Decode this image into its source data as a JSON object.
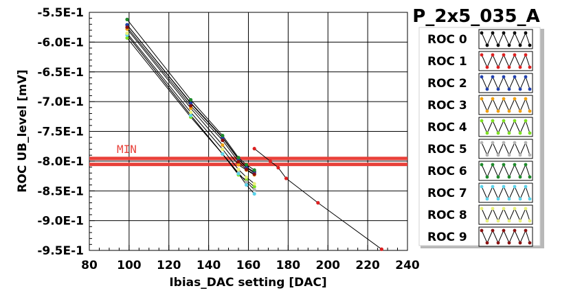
{
  "chart_data": {
    "type": "line",
    "title": "P_2x5_035_A",
    "xlabel": "Ibias_DAC setting [DAC]",
    "ylabel": "ROC UB_level [mV]",
    "xlim": [
      80,
      240
    ],
    "ylim": [
      -0.95,
      -0.55
    ],
    "xticks": [
      80,
      100,
      120,
      140,
      160,
      180,
      200,
      220,
      240
    ],
    "xtick_labels": [
      "80",
      "100",
      "120",
      "140",
      "160",
      "180",
      "200",
      "220",
      "240"
    ],
    "yticks": [
      -0.55,
      -0.6,
      -0.65,
      -0.7,
      -0.75,
      -0.8,
      -0.85,
      -0.9,
      -0.95
    ],
    "ytick_labels": [
      "-5.5E-1",
      "-6.0E-1",
      "-6.5E-1",
      "-7.0E-1",
      "-7.5E-1",
      "-8.0E-1",
      "-8.5E-1",
      "-9.0E-1",
      "-9.5E-1"
    ],
    "grid": true,
    "legend_position": "right",
    "threshold": {
      "label": "MIN",
      "color": "#e8413a",
      "band": [
        -0.7955,
        -0.8055
      ]
    },
    "series": [
      {
        "name": "ROC 0",
        "color": "#000000",
        "x": [
          99,
          131,
          147,
          155,
          159,
          163
        ],
        "y": [
          -0.571,
          -0.702,
          -0.76,
          -0.796,
          -0.81,
          -0.818
        ]
      },
      {
        "name": "ROC 1",
        "color": "#dd2020",
        "x": [
          163,
          171,
          175,
          179,
          195,
          227
        ],
        "y": [
          -0.779,
          -0.8,
          -0.811,
          -0.829,
          -0.87,
          -0.948
        ]
      },
      {
        "name": "ROC 2",
        "color": "#1f3fae",
        "x": [
          99,
          131,
          147,
          155,
          159,
          163
        ],
        "y": [
          -0.571,
          -0.703,
          -0.761,
          -0.797,
          -0.811,
          -0.82
        ]
      },
      {
        "name": "ROC 3",
        "color": "#f0a010",
        "x": [
          99,
          131,
          147,
          155,
          159,
          163
        ],
        "y": [
          -0.578,
          -0.711,
          -0.773,
          -0.806,
          -0.815,
          -0.823
        ]
      },
      {
        "name": "ROC 4",
        "color": "#7de020",
        "x": [
          99,
          131,
          147,
          155,
          159,
          163
        ],
        "y": [
          -0.593,
          -0.726,
          -0.788,
          -0.823,
          -0.832,
          -0.843
        ]
      },
      {
        "name": "ROC 5",
        "color": "#b4b4b4",
        "x": [
          99,
          131,
          147,
          155,
          159,
          163
        ],
        "y": [
          -0.588,
          -0.723,
          -0.788,
          -0.82,
          -0.835,
          -0.848
        ]
      },
      {
        "name": "ROC 6",
        "color": "#1e8a2a",
        "x": [
          99,
          131,
          147,
          155,
          159,
          163
        ],
        "y": [
          -0.562,
          -0.697,
          -0.757,
          -0.794,
          -0.806,
          -0.815
        ]
      },
      {
        "name": "ROC 7",
        "color": "#5ad2ea",
        "x": [
          99,
          131,
          147,
          155,
          159,
          163
        ],
        "y": [
          -0.588,
          -0.723,
          -0.788,
          -0.821,
          -0.84,
          -0.855
        ]
      },
      {
        "name": "ROC 8",
        "color": "#e8f07a",
        "x": [
          99,
          131,
          147,
          155,
          159,
          163
        ],
        "y": [
          -0.585,
          -0.718,
          -0.78,
          -0.814,
          -0.827,
          -0.838
        ]
      },
      {
        "name": "ROC 9",
        "color": "#8a1010",
        "x": [
          99,
          131,
          147,
          155,
          159,
          163
        ],
        "y": [
          -0.575,
          -0.707,
          -0.765,
          -0.801,
          -0.814,
          -0.822
        ]
      }
    ]
  }
}
